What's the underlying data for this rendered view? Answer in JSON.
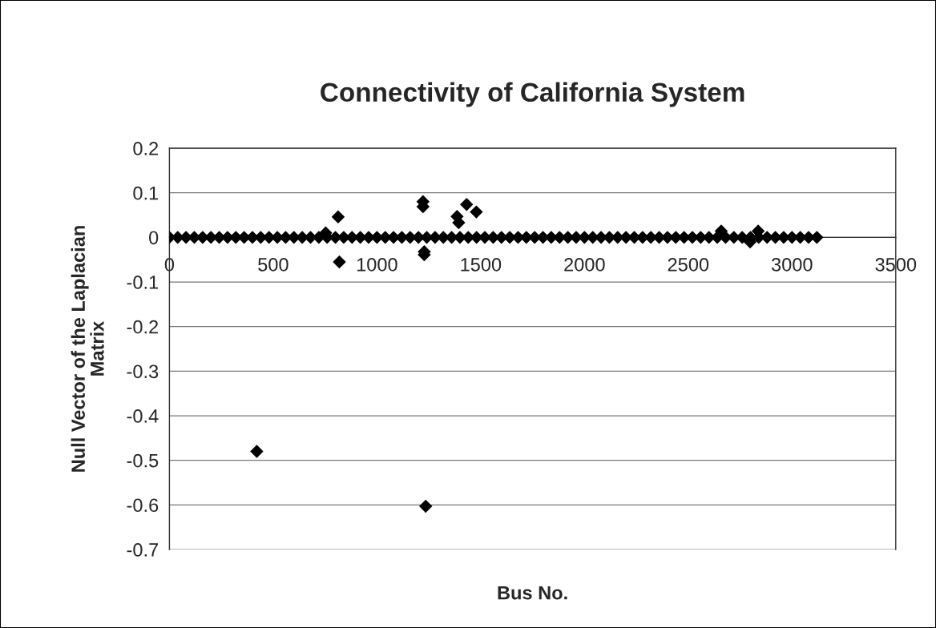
{
  "chart_data": {
    "type": "scatter",
    "title": "Connectivity of California System",
    "xlabel": "Bus No.",
    "ylabel": "Null Vector of the Laplacian\nMatrix",
    "series": [
      {
        "color": "#000000",
        "x": [
          0,
          40,
          80,
          120,
          160,
          200,
          240,
          280,
          320,
          360,
          400,
          440,
          480,
          520,
          560,
          600,
          640,
          680,
          720,
          760,
          800,
          840,
          880,
          920,
          960,
          1000,
          1040,
          1080,
          1120,
          1160,
          1200,
          1240,
          1280,
          1320,
          1360,
          1400,
          1440,
          1480,
          1520,
          1560,
          1600,
          1640,
          1680,
          1720,
          1760,
          1800,
          1840,
          1880,
          1920,
          1960,
          2000,
          2040,
          2080,
          2120,
          2160,
          2200,
          2240,
          2280,
          2320,
          2360,
          2400,
          2440,
          2480,
          2520,
          2560,
          2600,
          2640,
          2680,
          2720,
          2760,
          2800,
          2840,
          2880,
          2920,
          2960,
          3000,
          3040,
          3080,
          3120,
          753,
          813,
          819,
          1222,
          1222,
          1228,
          1228,
          1235,
          1386,
          1394,
          1432,
          1479,
          421,
          2659,
          2798,
          2837
        ],
        "values": [
          0,
          0,
          0,
          0,
          0,
          0,
          0,
          0,
          0,
          0,
          0,
          0,
          0,
          0,
          0,
          0,
          0,
          0,
          0,
          0,
          0,
          0,
          0,
          0,
          0,
          0,
          0,
          0,
          0,
          0,
          0,
          0,
          0,
          0,
          0,
          0,
          0,
          0,
          0,
          0,
          0,
          0,
          0,
          0,
          0,
          0,
          0,
          0,
          0,
          0,
          0,
          0,
          0,
          0,
          0,
          0,
          0,
          0,
          0,
          0,
          0,
          0,
          0,
          0,
          0,
          0,
          0,
          0,
          0,
          0,
          0,
          0,
          0,
          0,
          0,
          0,
          0,
          0,
          0,
          0.01,
          0.046,
          -0.055,
          0.08,
          0.069,
          -0.032,
          -0.039,
          -0.603,
          0.047,
          0.033,
          0.074,
          0.057,
          -0.48,
          0.014,
          -0.01,
          0.014
        ]
      }
    ],
    "xlim": [
      0,
      3500
    ],
    "xticks": [
      0,
      500,
      1000,
      1500,
      2000,
      2500,
      3000,
      3500
    ],
    "ylim": [
      -0.7,
      0.2
    ],
    "yticks": [
      -0.7,
      -0.6,
      -0.5,
      -0.4,
      -0.3,
      -0.2,
      -0.1,
      0,
      0.1,
      0.2
    ],
    "grid": "y",
    "marker": "diamond"
  }
}
